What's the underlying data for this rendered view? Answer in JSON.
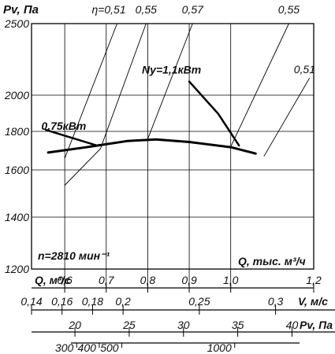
{
  "chart_data": {
    "type": "line",
    "title": "",
    "ylabel": "Pv, Па",
    "xlabel": "Q, тыс. м³/ч",
    "speed_label": "n=2810 мин⁻¹",
    "grid": true,
    "ylim": [
      1200,
      2500
    ],
    "xlim": [
      0.52,
      1.2
    ],
    "y_ticks": [
      {
        "value": 1200,
        "label": "1200"
      },
      {
        "value": 1400,
        "label": "1400"
      },
      {
        "value": 1600,
        "label": "1600"
      },
      {
        "value": 1800,
        "label": "1800"
      },
      {
        "value": 2000,
        "label": "2000"
      },
      {
        "value": 2500,
        "label": "2500"
      }
    ],
    "x_gridlines": [
      0.6,
      0.7,
      0.8,
      0.9,
      1.0
    ],
    "efficiency_lines": [
      {
        "label": "η=0,51",
        "points": [
          [
            0.6,
            1660
          ],
          [
            0.726,
            2500
          ]
        ]
      },
      {
        "label": "0,55",
        "points": [
          [
            0.6,
            1535
          ],
          [
            0.686,
            1710
          ],
          [
            0.796,
            2500
          ]
        ]
      },
      {
        "label": "0,57",
        "points": [
          [
            0.798,
            1750
          ],
          [
            0.908,
            2500
          ]
        ]
      },
      {
        "label": "0,55",
        "points": [
          [
            1.0,
            1720
          ],
          [
            1.14,
            2500
          ]
        ]
      },
      {
        "label": "0,51",
        "points": [
          [
            1.08,
            1670
          ],
          [
            1.19,
            2120
          ]
        ]
      }
    ],
    "series": [
      {
        "name": "",
        "points": [
          [
            0.56,
            1690
          ],
          [
            0.65,
            1717
          ],
          [
            0.75,
            1750
          ],
          [
            0.82,
            1758
          ],
          [
            0.9,
            1745
          ],
          [
            1.0,
            1718
          ],
          [
            1.06,
            1685
          ]
        ]
      },
      {
        "name": "0,75кВт",
        "points": [
          [
            0.555,
            1808
          ],
          [
            0.675,
            1728
          ]
        ]
      },
      {
        "name": "Ny=1,1кВт",
        "points": [
          [
            0.9,
            2095
          ],
          [
            0.97,
            1897
          ],
          [
            1.02,
            1727
          ]
        ]
      }
    ],
    "bottom_scales": [
      {
        "label": "Q, м³/с",
        "min": 0.52,
        "max": 1.2,
        "ticks": [
          {
            "value": 0.6,
            "label": "0,6"
          },
          {
            "value": 0.7,
            "label": "0,7"
          },
          {
            "value": 0.8,
            "label": "0,8"
          },
          {
            "value": 0.9,
            "label": "0,9"
          },
          {
            "value": 1.0,
            "label": "1,0"
          },
          {
            "value": 1.2,
            "label": "1,2"
          }
        ]
      },
      {
        "label": "V, м/с",
        "min": 0.14,
        "max": 0.325,
        "ticks": [
          {
            "value": 0.14,
            "label": "0,14"
          },
          {
            "value": 0.16,
            "label": "0,16"
          },
          {
            "value": 0.18,
            "label": "0,18"
          },
          {
            "value": 0.2,
            "label": "0,2"
          },
          {
            "value": 0.25,
            "label": "0,25"
          },
          {
            "value": 0.3,
            "label": "0,3"
          }
        ]
      },
      {
        "label": "Pv, Па",
        "min": 16,
        "max": 42,
        "ticks": [
          {
            "value": 20,
            "label": "20"
          },
          {
            "value": 25,
            "label": "25"
          },
          {
            "value": 30,
            "label": "30"
          },
          {
            "value": 35,
            "label": "35"
          },
          {
            "value": 40,
            "label": "40"
          }
        ]
      },
      {
        "label": "",
        "min": 100,
        "max": 1350,
        "ticks": [
          {
            "value": 300,
            "label": "300"
          },
          {
            "value": 400,
            "label": "400"
          },
          {
            "value": 500,
            "label": "500"
          },
          {
            "value": 1000,
            "label": "1000"
          }
        ]
      }
    ]
  }
}
